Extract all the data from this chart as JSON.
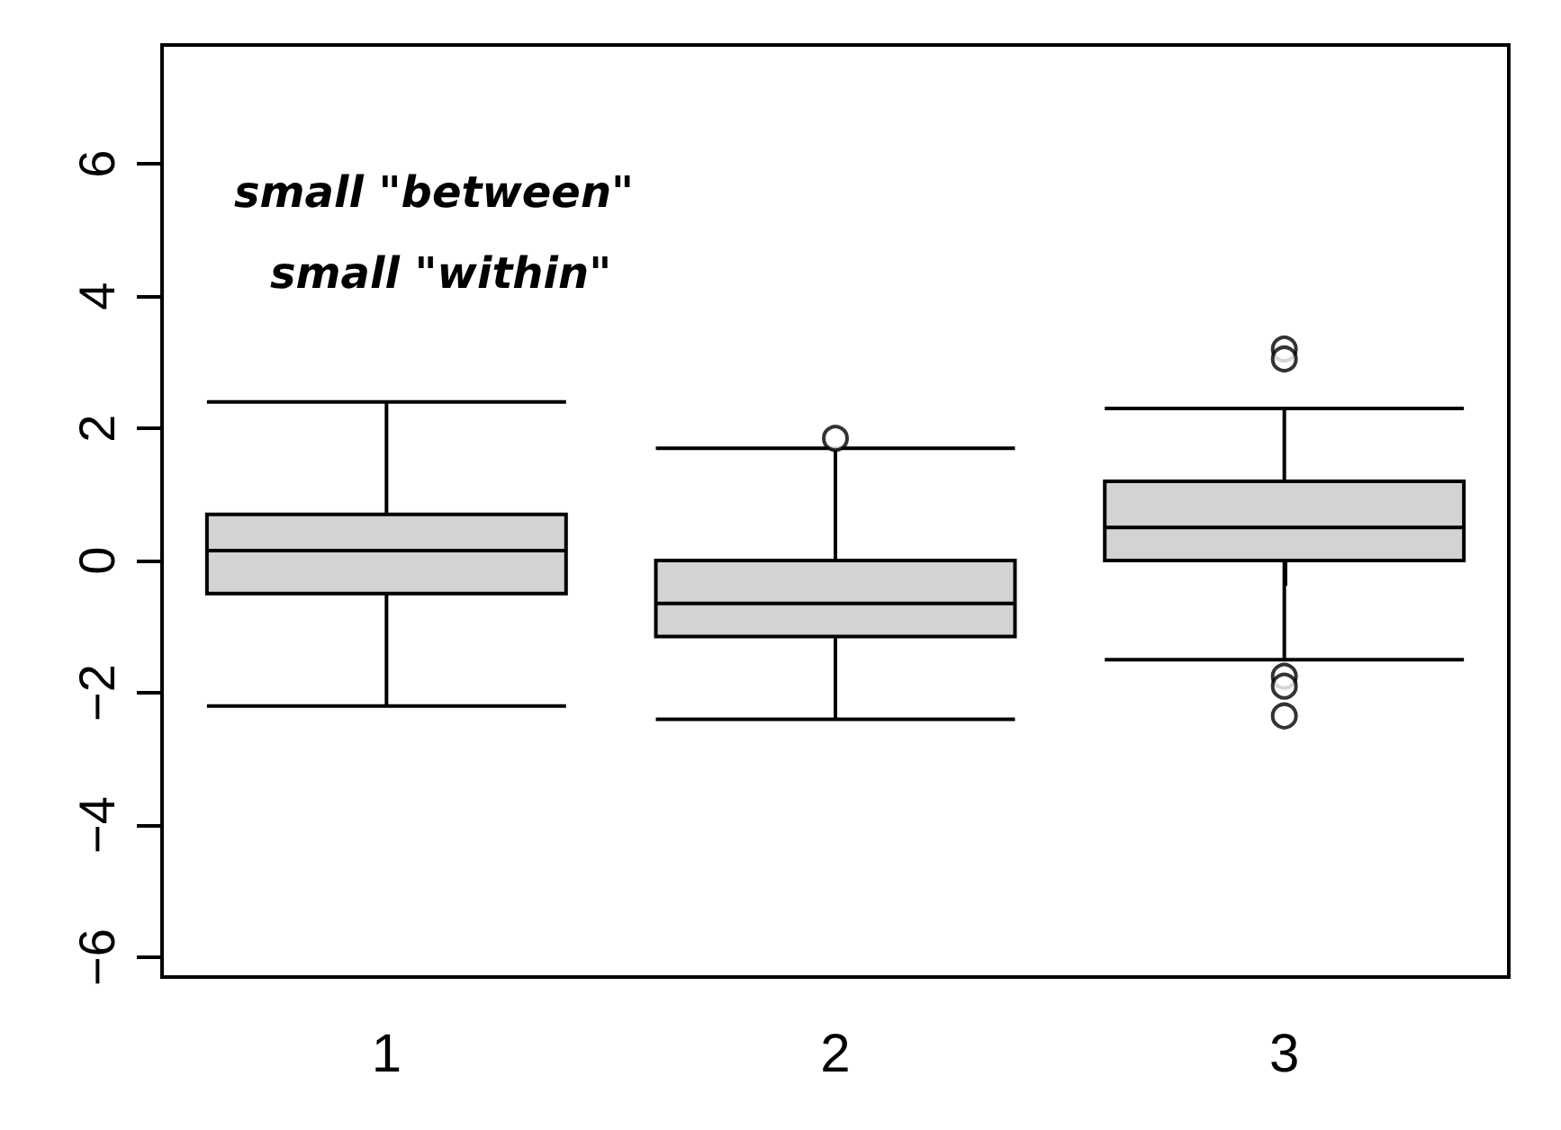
{
  "chart_data": {
    "type": "box",
    "categories": [
      "1",
      "2",
      "3"
    ],
    "color": "#d3d3d3",
    "boxes": [
      {
        "low": -2.2,
        "q1": -0.5,
        "median": 0.15,
        "q3": 0.7,
        "high": 2.4
      },
      {
        "low": -2.4,
        "q1": -1.15,
        "median": -0.65,
        "q3": 0,
        "high": 1.7,
        "outliers": [
          1.85
        ]
      },
      {
        "low": -1.5,
        "q1": 0,
        "median": 0.5,
        "q3": 1.2,
        "high": 2.3,
        "outliers": [
          3.2,
          3.05,
          -1.75,
          -1.9,
          -2.35
        ]
      }
    ],
    "ylim": [
      -6.3,
      7.8
    ],
    "yticks": [
      -6,
      -4,
      -2,
      0,
      2,
      4,
      6
    ],
    "grid": false,
    "marker": "circle",
    "annotations": [
      "small \"between\"",
      "small \"within\""
    ]
  }
}
